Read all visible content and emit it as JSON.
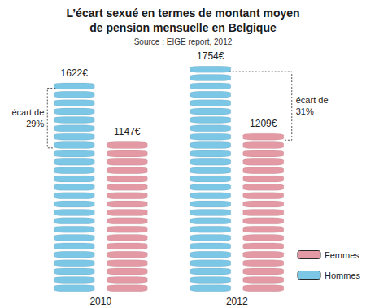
{
  "chart_data": {
    "type": "bar",
    "title": "L’écart sexué en termes de montant moyen\nde pension mensuelle en Belgique",
    "subtitle": "Source : EIGE report, 2012",
    "categories": [
      "2010",
      "2012"
    ],
    "series": [
      {
        "name": "Hommes",
        "color": "#7cc6e6",
        "values": [
          1622,
          1754
        ],
        "value_labels": [
          "1622€",
          "1754€"
        ]
      },
      {
        "name": "Femmes",
        "color": "#e49aa4",
        "values": [
          1147,
          1209
        ],
        "value_labels": [
          "1147€",
          "1209€"
        ]
      }
    ],
    "ylim": [
      0,
      1800
    ],
    "data_labels": true,
    "legend": "bottom-right",
    "grid": false,
    "tick_labels": "x",
    "annotations": [
      {
        "category": "2010",
        "text": "écart de\n29%"
      },
      {
        "category": "2012",
        "text": "écart de\n31%"
      }
    ]
  }
}
